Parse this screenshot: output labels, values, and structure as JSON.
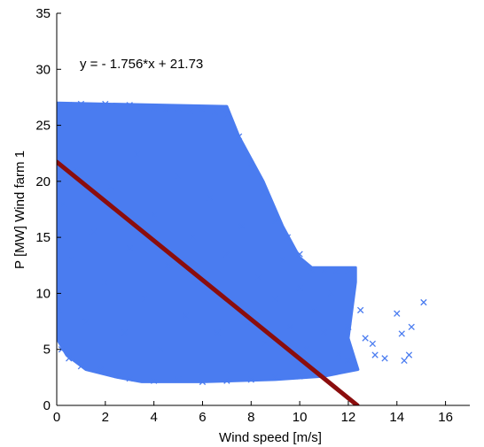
{
  "chart_data": {
    "type": "scatter",
    "title": "",
    "xlabel": "Wind speed [m/s]",
    "ylabel": "P [MW] Wind farm 1",
    "xlim": [
      0,
      17
    ],
    "ylim": [
      0,
      35
    ],
    "xticks": [
      0,
      2,
      4,
      6,
      8,
      10,
      12,
      14,
      16
    ],
    "yticks": [
      0,
      5,
      10,
      15,
      20,
      25,
      30,
      35
    ],
    "grid": false,
    "annotation": "y = - 1.756*x + 21.73",
    "colors": {
      "scatter": "#4a7cf0",
      "fit_line": "#8b0d0d"
    },
    "scatter": {
      "marker": "x",
      "note": "Dense point cloud of wind speed vs. power; values summarised as representative sample points.",
      "points": [
        [
          0.1,
          26.5
        ],
        [
          0.5,
          26.8
        ],
        [
          1.0,
          26.9
        ],
        [
          1.5,
          26.6
        ],
        [
          2.0,
          26.9
        ],
        [
          2.5,
          26.7
        ],
        [
          3.0,
          26.8
        ],
        [
          3.5,
          26.6
        ],
        [
          4.0,
          26.5
        ],
        [
          4.5,
          26.4
        ],
        [
          5.0,
          26.5
        ],
        [
          5.5,
          26.3
        ],
        [
          6.0,
          26.4
        ],
        [
          6.5,
          26.2
        ],
        [
          7.0,
          26.0
        ],
        [
          0.1,
          8.5
        ],
        [
          0.2,
          5.0
        ],
        [
          0.5,
          4.2
        ],
        [
          1.0,
          3.5
        ],
        [
          1.8,
          3.2
        ],
        [
          2.5,
          2.7
        ],
        [
          3.0,
          2.4
        ],
        [
          4.0,
          2.2
        ],
        [
          5.0,
          2.3
        ],
        [
          6.0,
          2.1
        ],
        [
          7.0,
          2.2
        ],
        [
          8.0,
          2.3
        ],
        [
          9.0,
          2.5
        ],
        [
          10.0,
          2.6
        ],
        [
          11.0,
          2.8
        ],
        [
          7.5,
          24.0
        ],
        [
          8.0,
          21.5
        ],
        [
          8.5,
          19.0
        ],
        [
          9.0,
          16.5
        ],
        [
          9.5,
          15.0
        ],
        [
          10.0,
          13.5
        ],
        [
          10.5,
          12.0
        ],
        [
          11.0,
          12.1
        ],
        [
          11.5,
          12.0
        ],
        [
          12.0,
          12.0
        ],
        [
          12.2,
          11.5
        ],
        [
          12.0,
          4.0
        ],
        [
          12.5,
          8.5
        ],
        [
          12.7,
          6.0
        ],
        [
          13.0,
          5.5
        ],
        [
          13.5,
          4.2
        ],
        [
          14.0,
          8.2
        ],
        [
          14.2,
          6.4
        ],
        [
          14.6,
          7.0
        ],
        [
          14.3,
          4.0
        ],
        [
          15.1,
          9.2
        ],
        [
          14.5,
          4.5
        ],
        [
          13.1,
          4.5
        ],
        [
          0.3,
          18.0
        ],
        [
          0.6,
          13.0
        ],
        [
          0.8,
          21.0
        ],
        [
          1.2,
          7.5
        ],
        [
          1.5,
          15.5
        ],
        [
          2.0,
          11.0
        ],
        [
          2.2,
          19.5
        ],
        [
          2.8,
          6.5
        ],
        [
          3.0,
          14.0
        ],
        [
          3.3,
          22.5
        ],
        [
          3.6,
          9.5
        ],
        [
          4.0,
          17.0
        ],
        [
          4.3,
          5.0
        ],
        [
          4.6,
          12.5
        ],
        [
          5.0,
          20.5
        ],
        [
          5.3,
          8.0
        ],
        [
          5.6,
          15.0
        ],
        [
          6.0,
          11.0
        ],
        [
          6.3,
          18.5
        ],
        [
          6.6,
          6.5
        ],
        [
          7.0,
          13.5
        ],
        [
          7.3,
          9.0
        ],
        [
          7.6,
          16.0
        ],
        [
          8.0,
          7.5
        ],
        [
          8.3,
          11.5
        ],
        [
          8.6,
          5.5
        ],
        [
          9.0,
          9.5
        ],
        [
          9.3,
          13.0
        ],
        [
          9.6,
          7.0
        ],
        [
          10.0,
          10.5
        ],
        [
          10.3,
          5.0
        ],
        [
          10.6,
          8.5
        ],
        [
          11.0,
          6.5
        ],
        [
          11.3,
          10.0
        ],
        [
          11.6,
          4.5
        ],
        [
          12.0,
          7.0
        ]
      ]
    },
    "series": [
      {
        "type": "line",
        "x": [
          0,
          12.37
        ],
        "y": [
          21.73,
          0
        ]
      }
    ]
  }
}
